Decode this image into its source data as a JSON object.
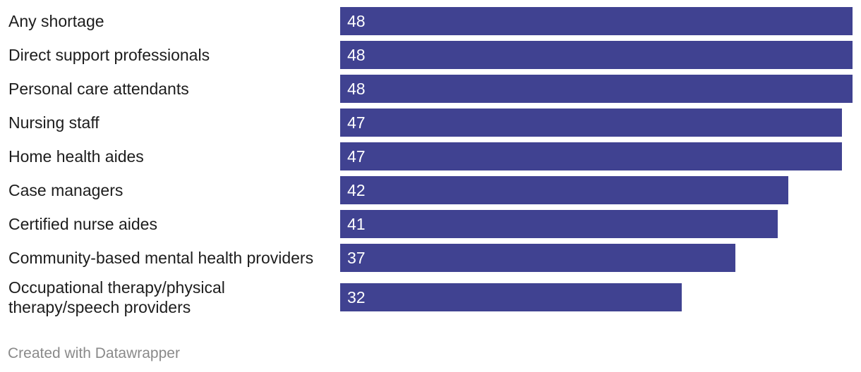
{
  "colors": {
    "bar": "#404291",
    "text": "#1d1d1d",
    "footer": "#8a8a8a",
    "value": "#ffffff"
  },
  "chart_data": {
    "type": "bar",
    "orientation": "horizontal",
    "categories": [
      "Any shortage",
      "Direct support professionals",
      "Personal care attendants",
      "Nursing staff",
      "Home health aides",
      "Case managers",
      "Certified nurse aides",
      "Community-based mental health providers",
      "Occupational therapy/physical therapy/speech providers"
    ],
    "values": [
      48,
      48,
      48,
      47,
      47,
      42,
      41,
      37,
      32
    ],
    "xlim": [
      0,
      48
    ],
    "grid": false,
    "data_labels": true
  },
  "footer": {
    "text": "Created with Datawrapper"
  }
}
